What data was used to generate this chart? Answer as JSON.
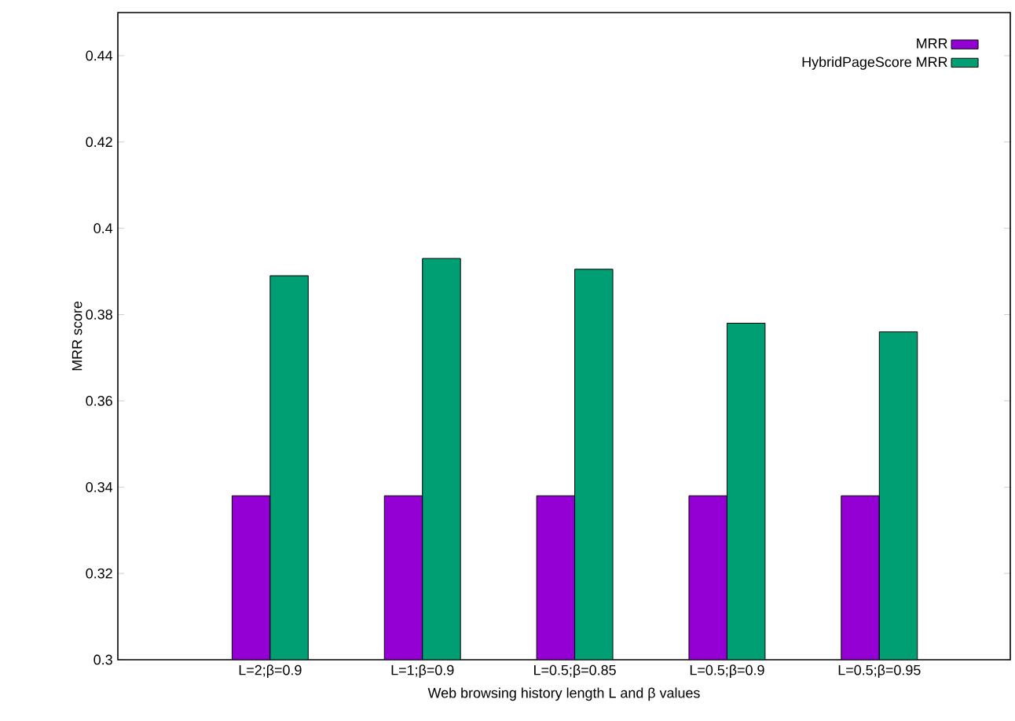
{
  "chart_data": {
    "type": "bar",
    "xlabel": "Web browsing history length L and β values",
    "ylabel": "MRR score",
    "categories": [
      "L=2;β=0.9",
      "L=1;β=0.9",
      "L=0.5;β=0.85",
      "L=0.5;β=0.9",
      "L=0.5;β=0.95"
    ],
    "series": [
      {
        "name": "MRR",
        "color": "#9400d3",
        "values": [
          0.338,
          0.338,
          0.338,
          0.338,
          0.338
        ]
      },
      {
        "name": "HybridPageScore MRR",
        "color": "#009e73",
        "values": [
          0.389,
          0.393,
          0.3905,
          0.378,
          0.376
        ]
      }
    ],
    "ylim": [
      0.3,
      0.45
    ],
    "yticks": [
      0.3,
      0.32,
      0.34,
      0.36,
      0.38,
      0.4,
      0.42,
      0.44
    ],
    "grid": false,
    "legend": "top right"
  }
}
